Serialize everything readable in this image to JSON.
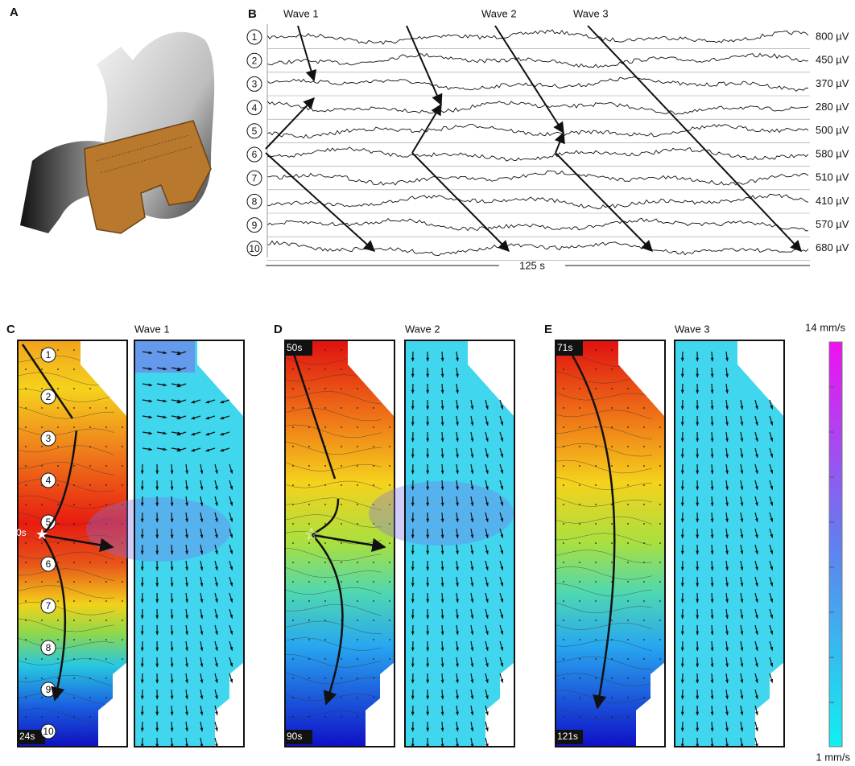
{
  "panel_a": {
    "label": "A"
  },
  "panel_b": {
    "label": "B",
    "waves": [
      "Wave 1",
      "Wave 2",
      "Wave 3"
    ],
    "channels": [
      {
        "number": 1,
        "amplitude": "800 µV"
      },
      {
        "number": 2,
        "amplitude": "450 µV"
      },
      {
        "number": 3,
        "amplitude": "370 µV"
      },
      {
        "number": 4,
        "amplitude": "280 µV"
      },
      {
        "number": 5,
        "amplitude": "500 µV"
      },
      {
        "number": 6,
        "amplitude": "580 µV"
      },
      {
        "number": 7,
        "amplitude": "510 µV"
      },
      {
        "number": 8,
        "amplitude": "410 µV"
      },
      {
        "number": 9,
        "amplitude": "570 µV"
      },
      {
        "number": 10,
        "amplitude": "680 µV"
      }
    ],
    "timescale": "125 s"
  },
  "maps": [
    {
      "label": "C",
      "title": "Wave 1",
      "start": "0s",
      "end": "24s",
      "electrodes": [
        1,
        2,
        3,
        4,
        5,
        6,
        7,
        8,
        9,
        10
      ]
    },
    {
      "label": "D",
      "title": "Wave 2",
      "start": "50s",
      "end": "90s"
    },
    {
      "label": "E",
      "title": "Wave 3",
      "start": "71s",
      "end": "121s"
    }
  ],
  "colorbar": {
    "max": "14 mm/s",
    "min": "1 mm/s"
  }
}
